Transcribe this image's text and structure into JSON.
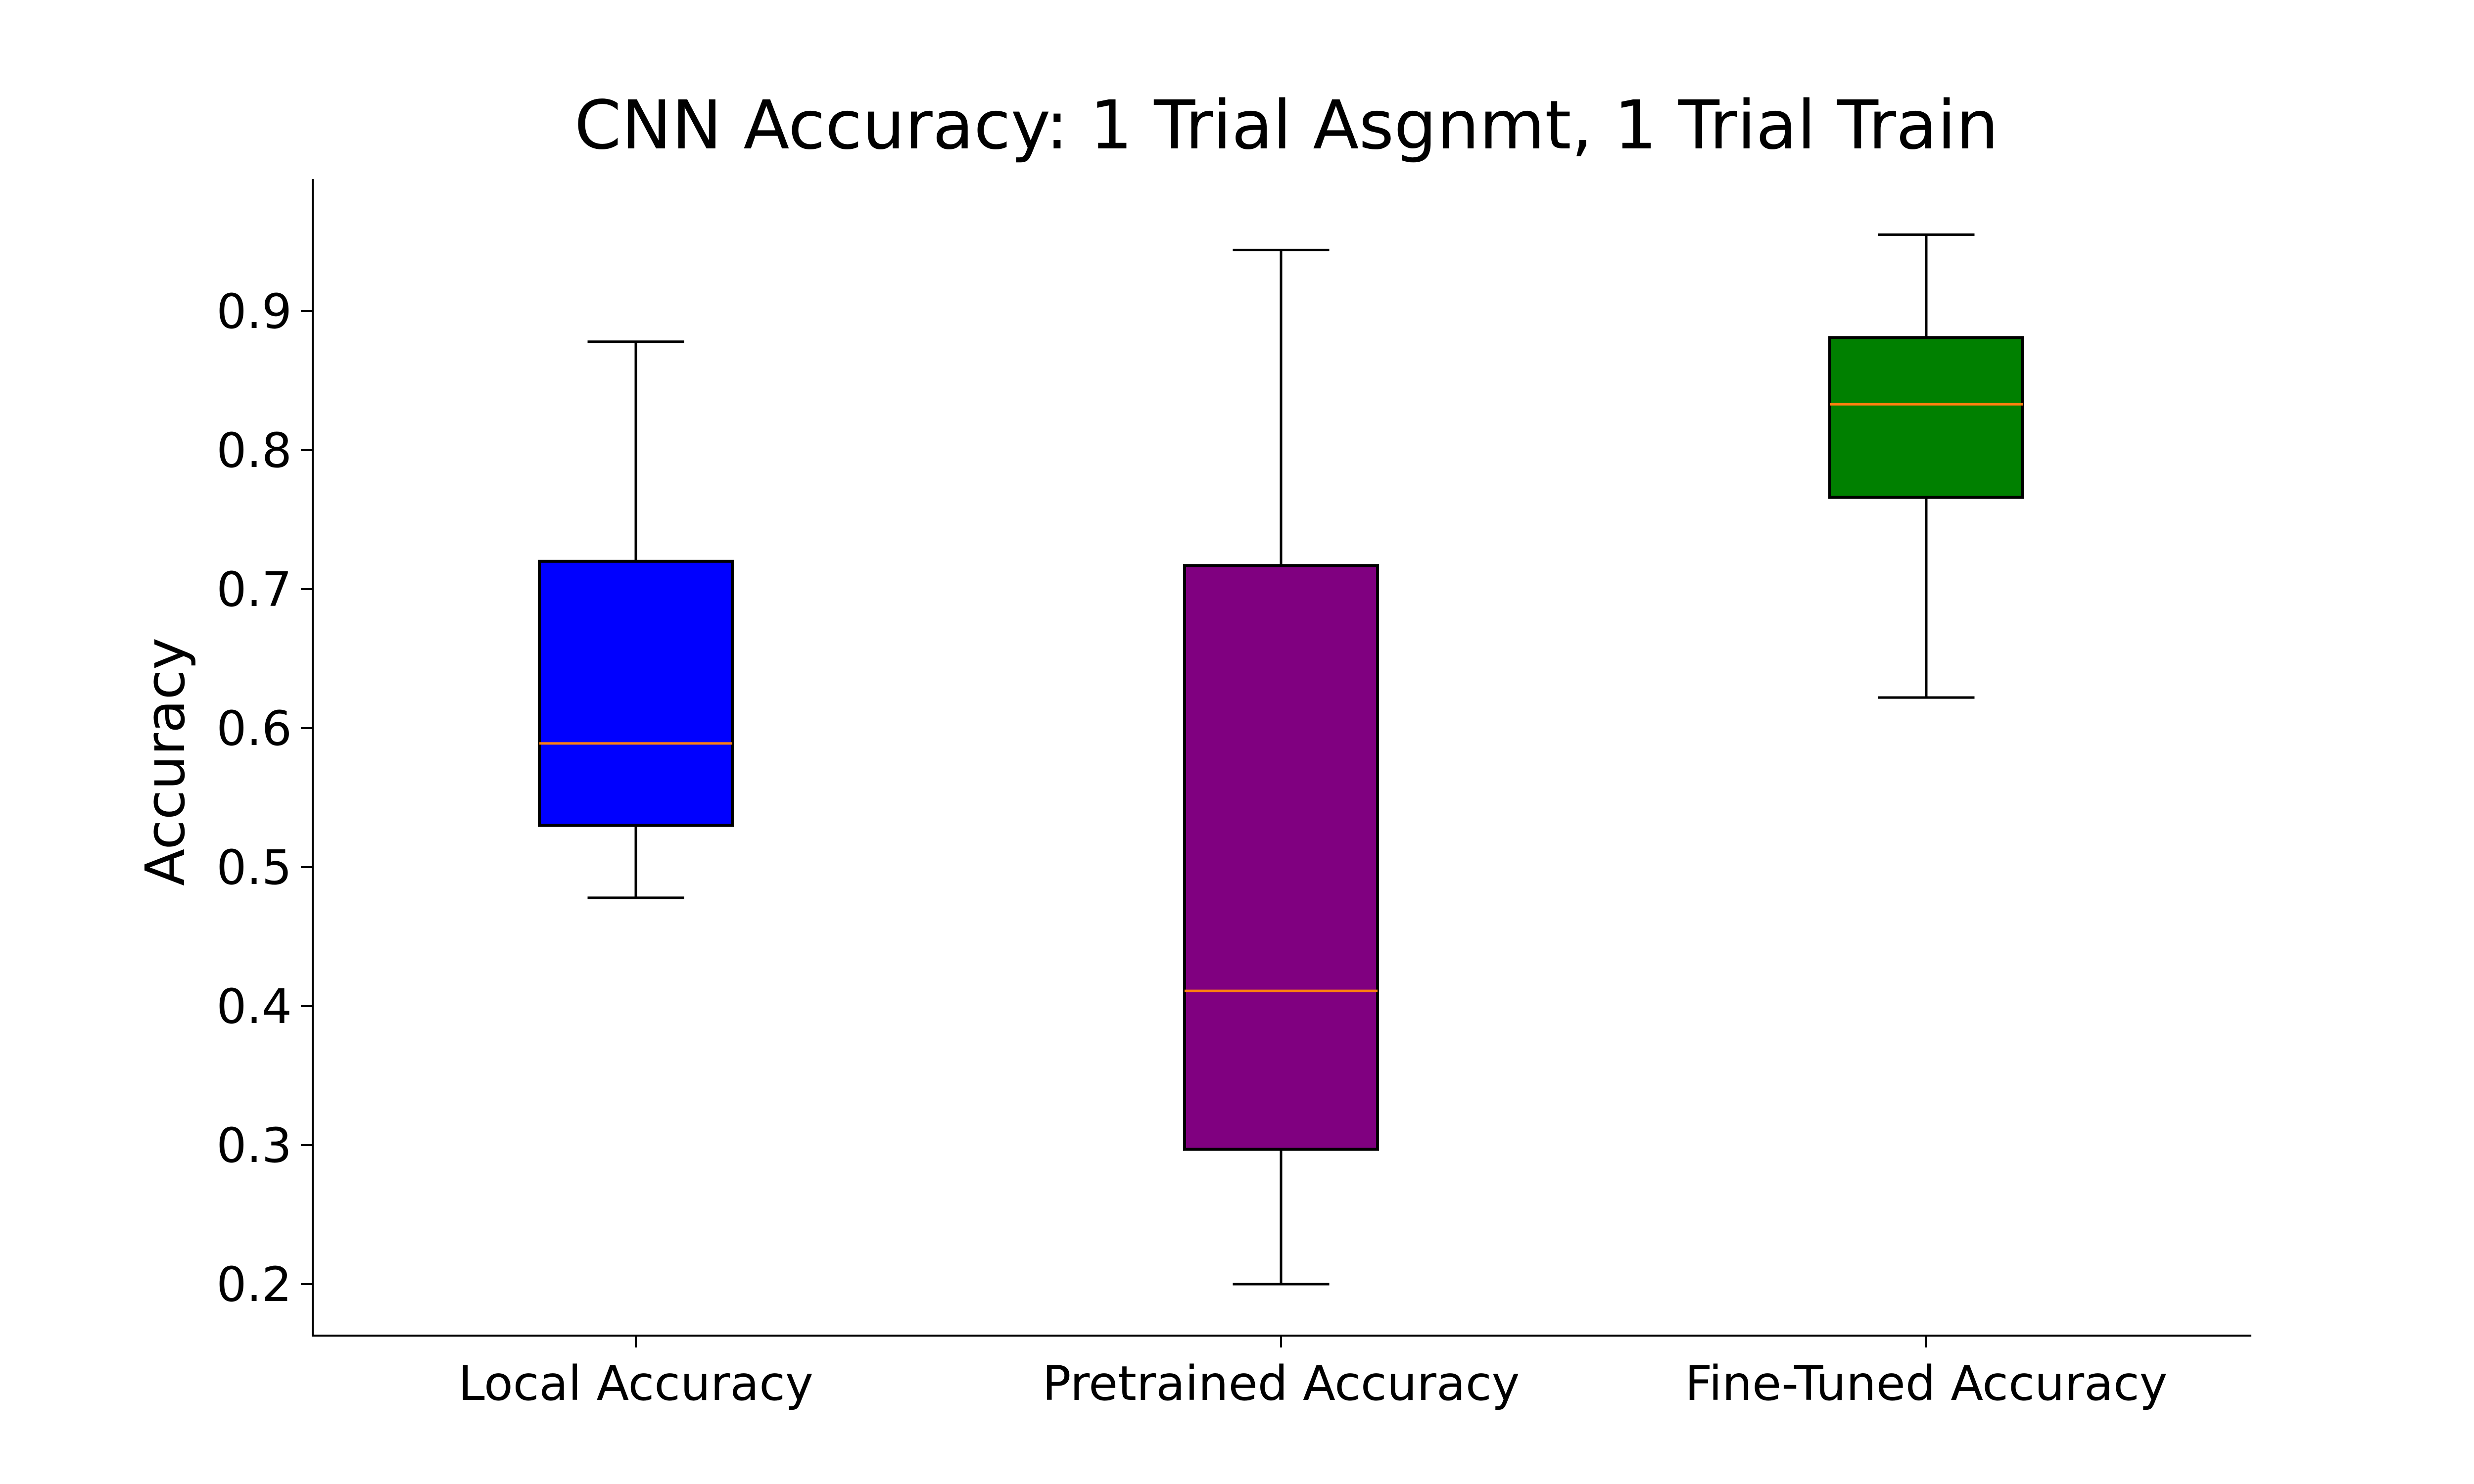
{
  "chart_data": {
    "type": "box",
    "title": "CNN Accuracy: 1 Trial Asgnmt, 1 Trial Train",
    "xlabel": "",
    "ylabel": "Accuracy",
    "ylim": [
      0.163,
      0.995
    ],
    "yticks": [
      0.2,
      0.3,
      0.4,
      0.5,
      0.6,
      0.7,
      0.8,
      0.9
    ],
    "ytick_labels": [
      "0.2",
      "0.3",
      "0.4",
      "0.5",
      "0.6",
      "0.7",
      "0.8",
      "0.9"
    ],
    "grid": false,
    "categories": [
      "Local Accuracy",
      "Pretrained Accuracy",
      "Fine-Tuned Accuracy"
    ],
    "series": [
      {
        "whisker_low": 0.478,
        "q1": 0.53,
        "median": 0.589,
        "q3": 0.72,
        "whisker_high": 0.878,
        "color": "#0000ff"
      },
      {
        "whisker_low": 0.2,
        "q1": 0.297,
        "median": 0.411,
        "q3": 0.717,
        "whisker_high": 0.944,
        "color": "#800080"
      },
      {
        "whisker_low": 0.622,
        "q1": 0.766,
        "median": 0.833,
        "q3": 0.881,
        "whisker_high": 0.955,
        "color": "#008000"
      }
    ],
    "median_color": "#ff7f0e"
  }
}
